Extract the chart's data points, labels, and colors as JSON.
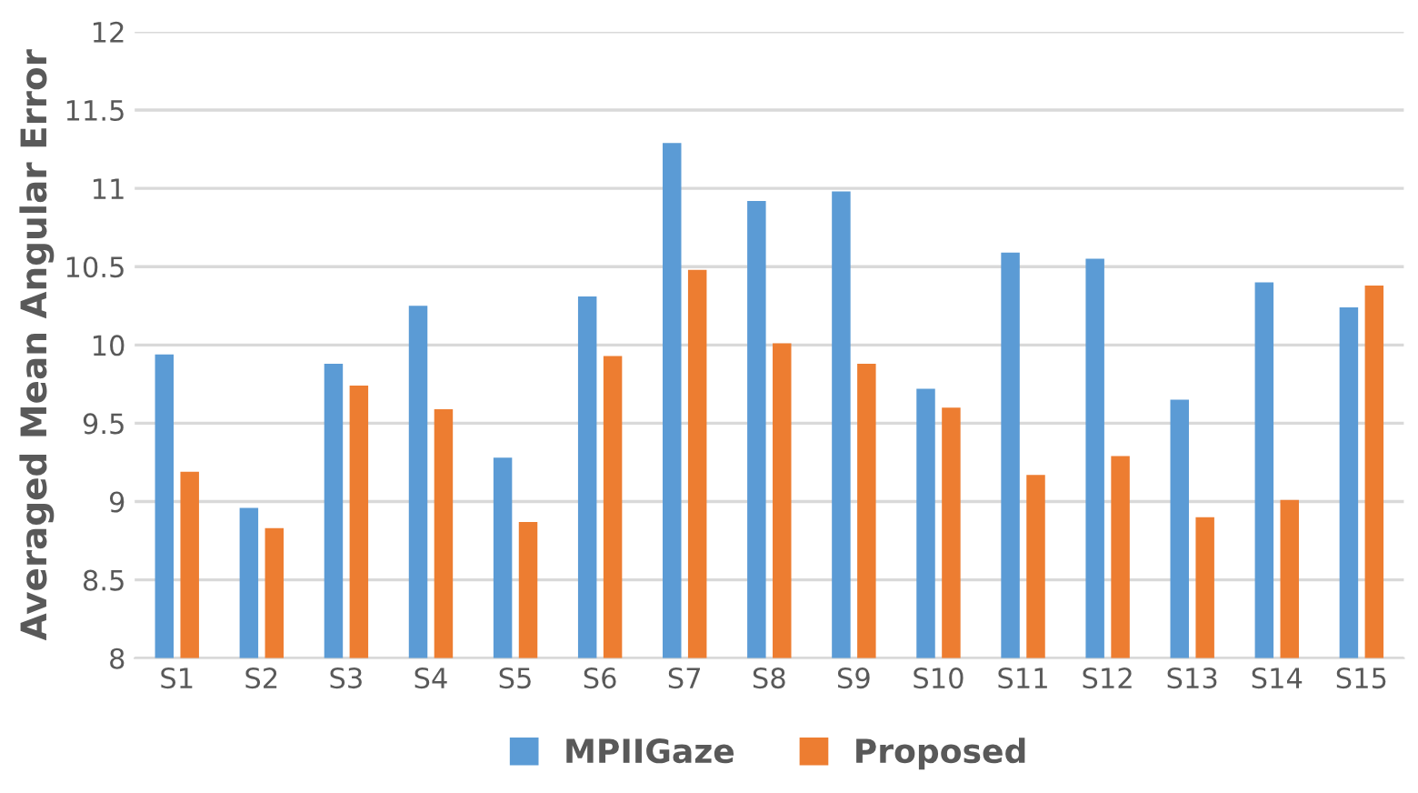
{
  "chart_data": {
    "type": "bar",
    "ylabel": "Averaged Mean Angular Error",
    "categories": [
      "S1",
      "S2",
      "S3",
      "S4",
      "S5",
      "S6",
      "S7",
      "S8",
      "S9",
      "S10",
      "S11",
      "S12",
      "S13",
      "S14",
      "S15"
    ],
    "series": [
      {
        "name": "MPIIGaze",
        "color": "#5b9bd5",
        "values": [
          9.94,
          8.96,
          9.88,
          10.25,
          9.28,
          10.31,
          11.29,
          10.92,
          10.98,
          9.72,
          10.59,
          10.55,
          9.65,
          10.4,
          10.24
        ]
      },
      {
        "name": "Proposed",
        "color": "#ed7d31",
        "values": [
          9.19,
          8.83,
          9.74,
          9.59,
          8.87,
          9.93,
          10.48,
          10.01,
          9.88,
          9.6,
          9.17,
          9.29,
          8.9,
          9.01,
          10.38
        ]
      }
    ],
    "ylim": [
      8,
      12
    ],
    "yticks": [
      8,
      8.5,
      9,
      9.5,
      10,
      10.5,
      11,
      11.5,
      12
    ],
    "grid": "y",
    "legend": "bottom"
  }
}
